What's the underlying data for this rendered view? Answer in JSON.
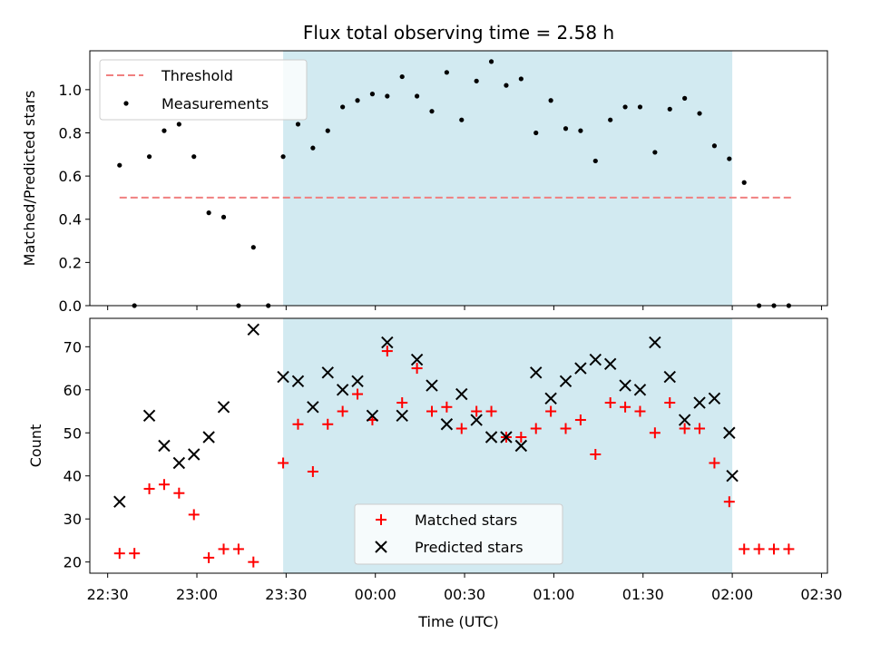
{
  "figure": {
    "title": "Flux total observing time = 2.58 h",
    "xlabel": "Time (UTC)",
    "colors": {
      "band": "#add8e6",
      "threshold": "#f08080",
      "measurement": "#000000",
      "matched": "#ff0000",
      "predicted": "#000000"
    }
  },
  "chart_data": [
    {
      "type": "scatter",
      "title": "Flux total observing time = 2.58 h",
      "xlabel": "",
      "ylabel": "Matched/Predicted stars",
      "xlim": [
        "22:24",
        "02:32"
      ],
      "ylim": [
        0,
        1.18
      ],
      "yticks": [
        "0.0",
        "0.2",
        "0.4",
        "0.6",
        "0.8",
        "1.0"
      ],
      "legend_position": "upper-left",
      "highlight_interval": [
        "23:29",
        "02:00"
      ],
      "threshold": {
        "name": "Threshold",
        "y": 0.5,
        "x_range": [
          "22:34",
          "02:20"
        ],
        "style": "dashed"
      },
      "series": [
        {
          "name": "Measurements",
          "x": [
            "22:34",
            "22:39",
            "22:44",
            "22:49",
            "22:54",
            "22:59",
            "23:04",
            "23:09",
            "23:14",
            "23:19",
            "23:24",
            "23:29",
            "23:34",
            "23:39",
            "23:44",
            "23:49",
            "23:54",
            "23:59",
            "00:04",
            "00:09",
            "00:14",
            "00:19",
            "00:24",
            "00:29",
            "00:34",
            "00:39",
            "00:44",
            "00:49",
            "00:54",
            "00:59",
            "01:04",
            "01:09",
            "01:14",
            "01:19",
            "01:24",
            "01:29",
            "01:34",
            "01:39",
            "01:44",
            "01:49",
            "01:54",
            "01:59",
            "02:04",
            "02:09",
            "02:14",
            "02:19"
          ],
          "y": [
            0.65,
            0.0,
            0.69,
            0.81,
            0.84,
            0.69,
            0.43,
            0.41,
            0.0,
            0.27,
            0.0,
            0.69,
            0.84,
            0.73,
            0.81,
            0.92,
            0.95,
            0.98,
            0.97,
            1.06,
            0.97,
            0.9,
            1.08,
            0.86,
            1.04,
            1.13,
            1.02,
            1.05,
            0.8,
            0.95,
            0.82,
            0.81,
            0.67,
            0.86,
            0.92,
            0.92,
            0.71,
            0.91,
            0.96,
            0.89,
            0.74,
            0.68,
            0.57,
            0.0,
            0.0,
            0.0
          ]
        }
      ]
    },
    {
      "type": "scatter",
      "title": "",
      "xlabel": "Time (UTC)",
      "ylabel": "Count",
      "xlim": [
        "22:24",
        "02:32"
      ],
      "ylim": [
        17.4,
        76.6
      ],
      "yticks": [
        "20",
        "30",
        "40",
        "50",
        "60",
        "70"
      ],
      "xticks": [
        "22:30",
        "23:00",
        "23:30",
        "00:00",
        "00:30",
        "01:00",
        "01:30",
        "02:00",
        "02:30"
      ],
      "legend_position": "lower-center",
      "highlight_interval": [
        "23:29",
        "02:00"
      ],
      "series": [
        {
          "name": "Matched stars",
          "marker": "plus",
          "x": [
            "22:34",
            "22:39",
            "22:44",
            "22:49",
            "22:54",
            "22:59",
            "23:04",
            "23:09",
            "23:14",
            "23:19",
            "23:29",
            "23:34",
            "23:39",
            "23:44",
            "23:49",
            "23:54",
            "23:59",
            "00:04",
            "00:09",
            "00:14",
            "00:19",
            "00:24",
            "00:29",
            "00:34",
            "00:39",
            "00:44",
            "00:49",
            "00:54",
            "00:59",
            "01:04",
            "01:09",
            "01:14",
            "01:19",
            "01:24",
            "01:29",
            "01:34",
            "01:39",
            "01:44",
            "01:49",
            "01:54",
            "01:59",
            "02:04",
            "02:09",
            "02:14",
            "02:19"
          ],
          "y": [
            22,
            22,
            37,
            38,
            36,
            31,
            21,
            23,
            23,
            20,
            43,
            52,
            41,
            52,
            55,
            59,
            53,
            69,
            57,
            65,
            55,
            56,
            51,
            55,
            55,
            49,
            49,
            51,
            55,
            51,
            53,
            45,
            57,
            56,
            55,
            50,
            57,
            51,
            51,
            43,
            34,
            23,
            23,
            23,
            23
          ]
        },
        {
          "name": "Predicted stars",
          "marker": "x",
          "x": [
            "22:34",
            "22:44",
            "22:49",
            "22:54",
            "22:59",
            "23:04",
            "23:09",
            "23:19",
            "23:29",
            "23:34",
            "23:39",
            "23:44",
            "23:49",
            "23:54",
            "23:59",
            "00:04",
            "00:09",
            "00:14",
            "00:19",
            "00:24",
            "00:29",
            "00:34",
            "00:39",
            "00:44",
            "00:49",
            "00:54",
            "00:59",
            "01:04",
            "01:09",
            "01:14",
            "01:19",
            "01:24",
            "01:29",
            "01:34",
            "01:39",
            "01:44",
            "01:49",
            "01:54",
            "01:59"
          ],
          "y": [
            34,
            54,
            47,
            43,
            45,
            49,
            56,
            74,
            63,
            62,
            56,
            64,
            60,
            62,
            54,
            71,
            54,
            67,
            61,
            52,
            59,
            53,
            49,
            49,
            47,
            64,
            58,
            62,
            65,
            67,
            66,
            61,
            60,
            71,
            63,
            53,
            57,
            58,
            50
          ]
        }
      ],
      "extra_predicted": {
        "x": [
          "02:00"
        ],
        "y": [
          40
        ]
      }
    }
  ]
}
